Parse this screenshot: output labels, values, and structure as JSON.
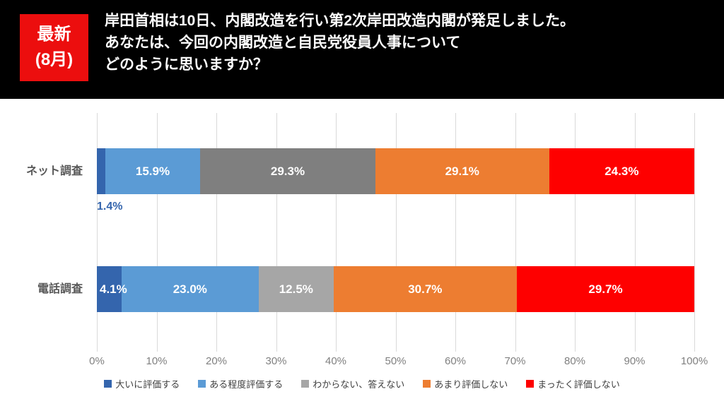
{
  "header": {
    "badge": {
      "line1": "最新",
      "line2": "(8月)",
      "bg_color": "#EC0E0E"
    },
    "title_lines": [
      "岸田首相は10日、内閣改造を行い第2次岸田改造内閣が発足しました。",
      "あなたは、今回の内閣改造と自民党役員人事について",
      "どのように思いますか？"
    ]
  },
  "chart_data": {
    "type": "bar",
    "orientation": "horizontal",
    "stacked": true,
    "categories": [
      "ネット調査",
      "電話調査"
    ],
    "series": [
      {
        "name": "大いに評価する",
        "color": "#3465AD",
        "values": [
          1.4,
          4.1
        ]
      },
      {
        "name": "ある程度評価する",
        "color": "#5B9BD5",
        "values": [
          15.9,
          23.0
        ]
      },
      {
        "name": "わからない、答えない",
        "color": "#A6A6A6",
        "row_colors": [
          "#7F7F7F",
          "#A6A6A6"
        ],
        "values": [
          29.3,
          12.5
        ]
      },
      {
        "name": "あまり評価しない",
        "color": "#ED7D31",
        "values": [
          29.1,
          30.7
        ]
      },
      {
        "name": "まったく評価しない",
        "color": "#FE0000",
        "values": [
          24.3,
          29.7
        ]
      }
    ],
    "value_suffix": "%",
    "value_decimals": 1,
    "label_overrides": [
      {
        "row": 0,
        "series": 0,
        "mode": "below"
      },
      {
        "row": 1,
        "series": 0,
        "mode": "inside-left"
      }
    ],
    "x_ticks": [
      "0%",
      "10%",
      "20%",
      "30%",
      "40%",
      "50%",
      "60%",
      "70%",
      "80%",
      "90%",
      "100%"
    ],
    "xlim": [
      0,
      100
    ],
    "grid": true,
    "gridline_color": "#D9D9D9",
    "legend_position": "bottom",
    "text_colors": {
      "category_label": "#595959",
      "axis_tick": "#808080",
      "legend": "#404040",
      "bar_value_inside": "#FFFFFF"
    }
  }
}
